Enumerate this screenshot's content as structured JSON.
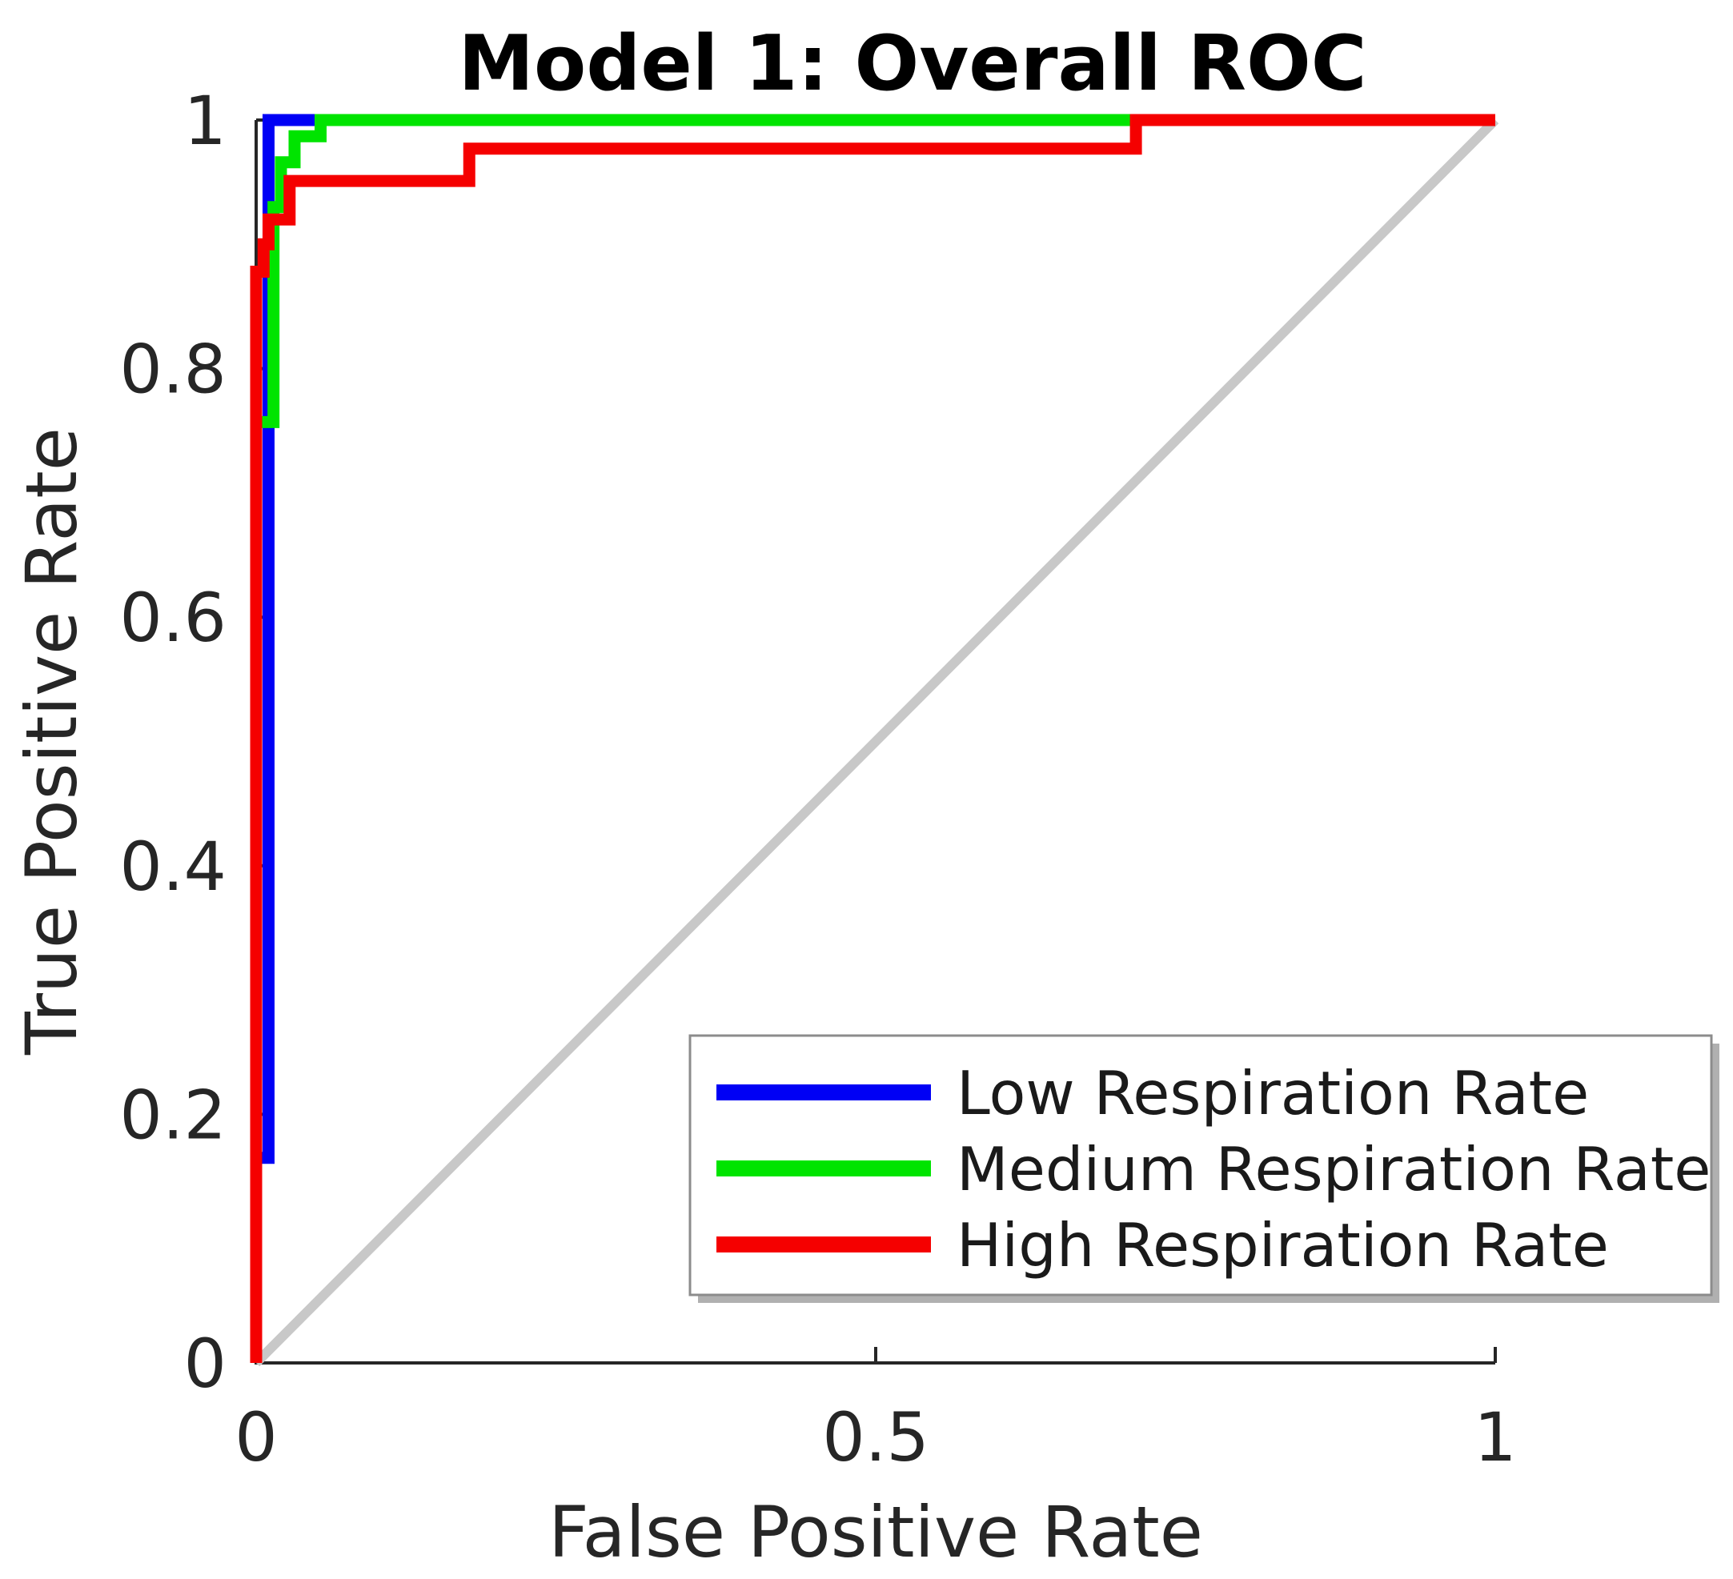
{
  "title": "Model 1: Overall ROC",
  "axes": {
    "xlabel": "False Positive Rate",
    "ylabel": "True Positive Rate",
    "x_ticks": [
      {
        "value": 0,
        "label": "0"
      },
      {
        "value": 0.5,
        "label": "0.5"
      },
      {
        "value": 1,
        "label": "1"
      }
    ],
    "y_ticks": [
      {
        "value": 0,
        "label": "0"
      },
      {
        "value": 0.2,
        "label": "0.2"
      },
      {
        "value": 0.4,
        "label": "0.4"
      },
      {
        "value": 0.6,
        "label": "0.6"
      },
      {
        "value": 0.8,
        "label": "0.8"
      },
      {
        "value": 1,
        "label": "1"
      }
    ],
    "axis_color": "#262626"
  },
  "legend": {
    "items": [
      {
        "label": "Low Respiration Rate",
        "color": "#0000f5"
      },
      {
        "label": "Medium Respiration Rate",
        "color": "#00e400"
      },
      {
        "label": "High Respiration Rate",
        "color": "#f50000"
      }
    ]
  },
  "chart_data": {
    "type": "line",
    "title": "Model 1: Overall ROC",
    "xlabel": "False Positive Rate",
    "ylabel": "True Positive Rate",
    "xlim": [
      0,
      1
    ],
    "ylim": [
      0,
      1
    ],
    "grid": false,
    "legend_position": "lower right",
    "reference_line": {
      "name": "chance diagonal",
      "color": "#c8c8c8",
      "points": [
        [
          0,
          0
        ],
        [
          1,
          1
        ]
      ]
    },
    "series": [
      {
        "name": "Low Respiration Rate",
        "color": "#0000f5",
        "points": [
          [
            0,
            0
          ],
          [
            0,
            0.165
          ],
          [
            0.01,
            0.165
          ],
          [
            0.01,
            1
          ],
          [
            1,
            1
          ]
        ]
      },
      {
        "name": "Medium Respiration Rate",
        "color": "#00e400",
        "points": [
          [
            0,
            0
          ],
          [
            0,
            0.757
          ],
          [
            0.014,
            0.757
          ],
          [
            0.014,
            0.93
          ],
          [
            0.02,
            0.93
          ],
          [
            0.02,
            0.966
          ],
          [
            0.031,
            0.966
          ],
          [
            0.031,
            0.987
          ],
          [
            0.052,
            0.987
          ],
          [
            0.052,
            1
          ],
          [
            1,
            1
          ]
        ]
      },
      {
        "name": "High Respiration Rate",
        "color": "#f50000",
        "points": [
          [
            0,
            0
          ],
          [
            0,
            0.878
          ],
          [
            0.006,
            0.878
          ],
          [
            0.006,
            0.9
          ],
          [
            0.01,
            0.9
          ],
          [
            0.01,
            0.92
          ],
          [
            0.027,
            0.92
          ],
          [
            0.027,
            0.951
          ],
          [
            0.172,
            0.951
          ],
          [
            0.172,
            0.977
          ],
          [
            0.71,
            0.977
          ],
          [
            0.71,
            1
          ],
          [
            1,
            1
          ]
        ]
      }
    ]
  }
}
